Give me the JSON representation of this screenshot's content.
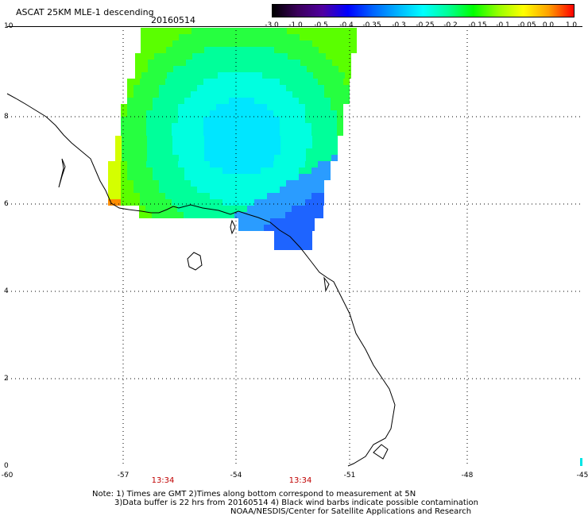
{
  "title": "ASCAT 25KM MLE-1 descending",
  "date": "20160514",
  "colorbar": {
    "labels": [
      "-3.0",
      "-1.0",
      "-0.5",
      "-0.4",
      "-0.35",
      "-0.3",
      "-0.25",
      "-0.2",
      "-0.15",
      "-0.1",
      "-0.05",
      "0.0",
      "1.0"
    ],
    "colors": [
      "#000000",
      "#3a005a",
      "#5000a0",
      "#0000ff",
      "#0064ff",
      "#00b4ff",
      "#00ffff",
      "#00ff96",
      "#00ff00",
      "#96ff00",
      "#ffff00",
      "#ffa000",
      "#ff0000"
    ]
  },
  "x_axis": {
    "labels": [
      "-60",
      "-57",
      "-54",
      "-51",
      "-48",
      "-45"
    ]
  },
  "y_axis": {
    "labels": [
      "10",
      "8",
      "6",
      "4",
      "2",
      "0"
    ]
  },
  "times": [
    "13:34",
    "13:34"
  ],
  "notes": {
    "line1": "Note: 1) Times are GMT 2)Times along bottom correspond to measurement at 5N",
    "line2": "3)Data buffer is 22 hrs from 20160514 4) Black wind barbs indicate possible contamination",
    "credit": "NOAA/NESDIS/Center for Satellite Applications and Research"
  },
  "colors": {
    "time_label": "#c00000",
    "frame": "#000000",
    "grid": "#000000"
  }
}
